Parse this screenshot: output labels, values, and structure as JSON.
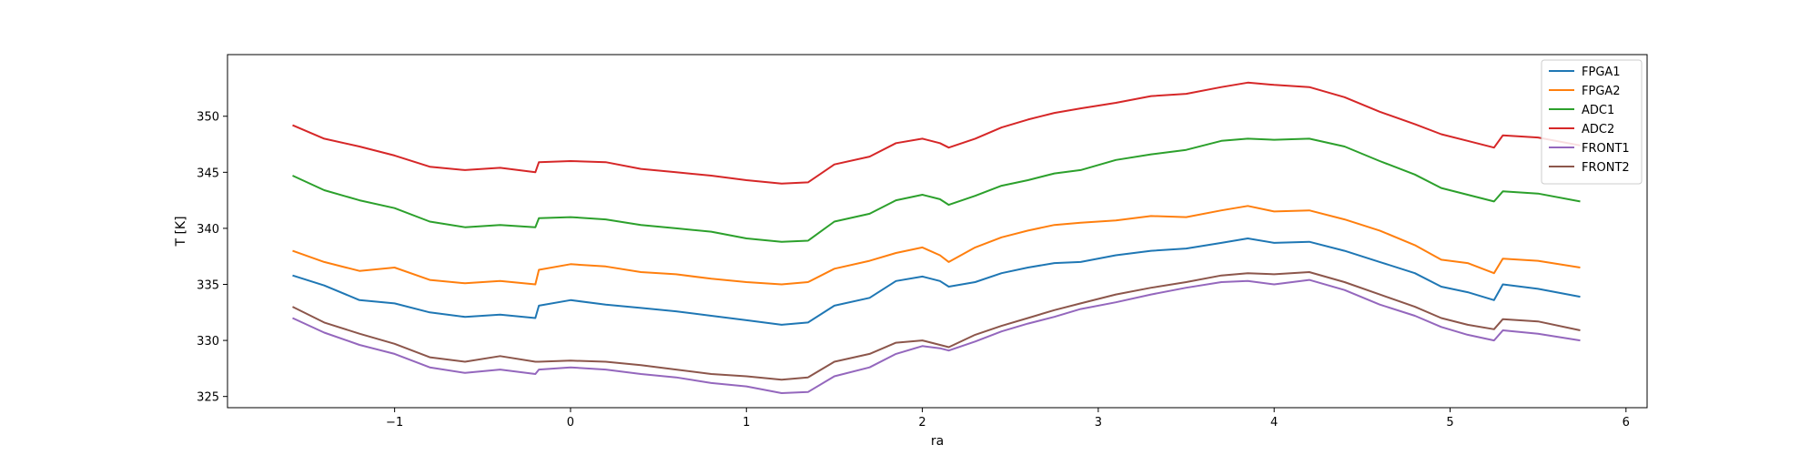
{
  "chart_data": {
    "type": "line",
    "title": "",
    "xlabel": "ra",
    "ylabel": "T [K]",
    "xlim": [
      -1.95,
      6.12
    ],
    "ylim": [
      324,
      355.5
    ],
    "xticks": [
      -1,
      0,
      1,
      2,
      3,
      4,
      5,
      6
    ],
    "yticks": [
      325,
      330,
      335,
      340,
      345,
      350
    ],
    "legend_position": "top-right",
    "grid": false,
    "series": [
      {
        "name": "FPGA1",
        "color": "#1f77b4",
        "x": [
          -1.58,
          -1.4,
          -1.2,
          -1.0,
          -0.8,
          -0.6,
          -0.4,
          -0.2,
          -0.18,
          0.0,
          0.2,
          0.4,
          0.6,
          0.8,
          1.0,
          1.2,
          1.35,
          1.5,
          1.7,
          1.85,
          2.0,
          2.1,
          2.15,
          2.3,
          2.45,
          2.6,
          2.75,
          2.9,
          3.1,
          3.3,
          3.5,
          3.7,
          3.85,
          4.0,
          4.2,
          4.4,
          4.6,
          4.8,
          4.95,
          5.1,
          5.25,
          5.3,
          5.5,
          5.74
        ],
        "y": [
          335.8,
          334.9,
          333.6,
          333.3,
          332.5,
          332.1,
          332.3,
          332.0,
          333.1,
          333.6,
          333.2,
          332.9,
          332.6,
          332.2,
          331.8,
          331.4,
          331.6,
          333.1,
          333.8,
          335.3,
          335.7,
          335.3,
          334.8,
          335.2,
          336.0,
          336.5,
          336.9,
          337.0,
          337.6,
          338.0,
          338.2,
          338.7,
          339.1,
          338.7,
          338.8,
          338.0,
          337.0,
          336.0,
          334.8,
          334.3,
          333.6,
          335.0,
          334.6,
          333.9
        ]
      },
      {
        "name": "FPGA2",
        "color": "#ff7f0e",
        "x": [
          -1.58,
          -1.4,
          -1.2,
          -1.0,
          -0.8,
          -0.6,
          -0.4,
          -0.2,
          -0.18,
          0.0,
          0.2,
          0.4,
          0.6,
          0.8,
          1.0,
          1.2,
          1.35,
          1.5,
          1.7,
          1.85,
          2.0,
          2.1,
          2.15,
          2.3,
          2.45,
          2.6,
          2.75,
          2.9,
          3.1,
          3.3,
          3.5,
          3.7,
          3.85,
          4.0,
          4.2,
          4.4,
          4.6,
          4.8,
          4.95,
          5.1,
          5.25,
          5.3,
          5.5,
          5.74
        ],
        "y": [
          338.0,
          337.0,
          336.2,
          336.5,
          335.4,
          335.1,
          335.3,
          335.0,
          336.3,
          336.8,
          336.6,
          336.1,
          335.9,
          335.5,
          335.2,
          335.0,
          335.2,
          336.4,
          337.1,
          337.8,
          338.3,
          337.6,
          337.0,
          338.3,
          339.2,
          339.8,
          340.3,
          340.5,
          340.7,
          341.1,
          341.0,
          341.6,
          342.0,
          341.5,
          341.6,
          340.8,
          339.8,
          338.5,
          337.2,
          336.9,
          336.0,
          337.3,
          337.1,
          336.5
        ]
      },
      {
        "name": "ADC1",
        "color": "#2ca02c",
        "x": [
          -1.58,
          -1.4,
          -1.2,
          -1.0,
          -0.8,
          -0.6,
          -0.4,
          -0.2,
          -0.18,
          0.0,
          0.2,
          0.4,
          0.6,
          0.8,
          1.0,
          1.2,
          1.35,
          1.5,
          1.7,
          1.85,
          2.0,
          2.1,
          2.15,
          2.3,
          2.45,
          2.6,
          2.75,
          2.9,
          3.1,
          3.3,
          3.5,
          3.7,
          3.85,
          4.0,
          4.2,
          4.4,
          4.6,
          4.8,
          4.95,
          5.1,
          5.25,
          5.3,
          5.5,
          5.74
        ],
        "y": [
          344.7,
          343.4,
          342.5,
          341.8,
          340.6,
          340.1,
          340.3,
          340.1,
          340.9,
          341.0,
          340.8,
          340.3,
          340.0,
          339.7,
          339.1,
          338.8,
          338.9,
          340.6,
          341.3,
          342.5,
          343.0,
          342.6,
          342.1,
          342.9,
          343.8,
          344.3,
          344.9,
          345.2,
          346.1,
          346.6,
          347.0,
          347.8,
          348.0,
          347.9,
          348.0,
          347.3,
          346.0,
          344.8,
          343.6,
          343.0,
          342.4,
          343.3,
          343.1,
          342.4
        ]
      },
      {
        "name": "ADC2",
        "color": "#d62728",
        "x": [
          -1.58,
          -1.4,
          -1.2,
          -1.0,
          -0.8,
          -0.6,
          -0.4,
          -0.2,
          -0.18,
          0.0,
          0.2,
          0.4,
          0.6,
          0.8,
          1.0,
          1.2,
          1.35,
          1.5,
          1.7,
          1.85,
          2.0,
          2.1,
          2.15,
          2.3,
          2.45,
          2.6,
          2.75,
          2.9,
          3.1,
          3.3,
          3.5,
          3.7,
          3.85,
          4.0,
          4.2,
          4.4,
          4.6,
          4.8,
          4.95,
          5.1,
          5.25,
          5.3,
          5.5,
          5.74
        ],
        "y": [
          349.2,
          348.0,
          347.3,
          346.5,
          345.5,
          345.2,
          345.4,
          345.0,
          345.9,
          346.0,
          345.9,
          345.3,
          345.0,
          344.7,
          344.3,
          344.0,
          344.1,
          345.7,
          346.4,
          347.6,
          348.0,
          347.6,
          347.2,
          348.0,
          349.0,
          349.7,
          350.3,
          350.7,
          351.2,
          351.8,
          352.0,
          352.6,
          353.0,
          352.8,
          352.6,
          351.7,
          350.4,
          349.3,
          348.4,
          347.8,
          347.2,
          348.3,
          348.1,
          347.4
        ]
      },
      {
        "name": "FRONT1",
        "color": "#9467bd",
        "x": [
          -1.58,
          -1.4,
          -1.2,
          -1.0,
          -0.8,
          -0.6,
          -0.4,
          -0.2,
          -0.18,
          0.0,
          0.2,
          0.4,
          0.6,
          0.8,
          1.0,
          1.2,
          1.35,
          1.5,
          1.7,
          1.85,
          2.0,
          2.1,
          2.15,
          2.3,
          2.45,
          2.6,
          2.75,
          2.9,
          3.1,
          3.3,
          3.5,
          3.7,
          3.85,
          4.0,
          4.2,
          4.4,
          4.6,
          4.8,
          4.95,
          5.1,
          5.25,
          5.3,
          5.5,
          5.74
        ],
        "y": [
          332.0,
          330.7,
          329.6,
          328.8,
          327.6,
          327.1,
          327.4,
          327.0,
          327.4,
          327.6,
          327.4,
          327.0,
          326.7,
          326.2,
          325.9,
          325.3,
          325.4,
          326.8,
          327.6,
          328.8,
          329.5,
          329.3,
          329.1,
          329.9,
          330.8,
          331.5,
          332.1,
          332.8,
          333.4,
          334.1,
          334.7,
          335.2,
          335.3,
          335.0,
          335.4,
          334.5,
          333.2,
          332.2,
          331.2,
          330.5,
          330.0,
          330.9,
          330.6,
          330.0
        ]
      },
      {
        "name": "FRONT2",
        "color": "#8c564b",
        "x": [
          -1.58,
          -1.4,
          -1.2,
          -1.0,
          -0.8,
          -0.6,
          -0.4,
          -0.2,
          -0.18,
          0.0,
          0.2,
          0.4,
          0.6,
          0.8,
          1.0,
          1.2,
          1.35,
          1.5,
          1.7,
          1.85,
          2.0,
          2.1,
          2.15,
          2.3,
          2.45,
          2.6,
          2.75,
          2.9,
          3.1,
          3.3,
          3.5,
          3.7,
          3.85,
          4.0,
          4.2,
          4.4,
          4.6,
          4.8,
          4.95,
          5.1,
          5.25,
          5.3,
          5.5,
          5.74
        ],
        "y": [
          333.0,
          331.6,
          330.6,
          329.7,
          328.5,
          328.1,
          328.6,
          328.1,
          328.1,
          328.2,
          328.1,
          327.8,
          327.4,
          327.0,
          326.8,
          326.5,
          326.7,
          328.1,
          328.8,
          329.8,
          330.0,
          329.6,
          329.4,
          330.5,
          331.3,
          332.0,
          332.7,
          333.3,
          334.1,
          334.7,
          335.2,
          335.8,
          336.0,
          335.9,
          336.1,
          335.2,
          334.1,
          333.0,
          332.0,
          331.4,
          331.0,
          331.9,
          331.7,
          330.9
        ]
      }
    ]
  }
}
